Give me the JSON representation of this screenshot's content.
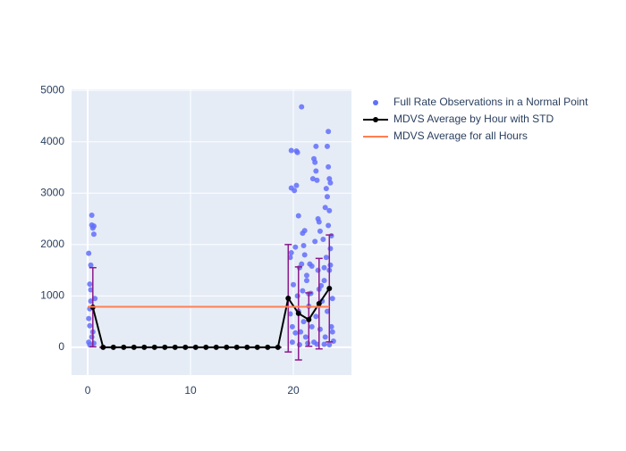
{
  "chart_data": {
    "type": "scatter",
    "xlim": [
      -1.57,
      25.65
    ],
    "ylim": [
      -540,
      5020
    ],
    "xticks": [
      0,
      10,
      20
    ],
    "yticks": [
      0,
      1000,
      2000,
      3000,
      4000,
      5000
    ],
    "grid": true,
    "legend": "outside-right",
    "series": [
      {
        "name": "Full Rate Observations in a Normal Point",
        "mode": "markers",
        "color": "#636efa",
        "x": [
          0.1,
          0.2,
          0.3,
          0.4,
          0.4,
          0.5,
          0.6,
          0.6,
          0.1,
          0.2,
          0.3,
          0.1,
          0.2,
          0.5,
          0.7,
          0.4,
          0.6,
          0.2,
          0.3,
          19.8,
          19.8,
          20.1,
          20.3,
          20.4,
          20.3,
          20.5,
          20.8,
          20.9,
          21.1,
          21.0,
          19.8,
          19.7,
          20.2,
          20.6,
          21.1,
          21.3,
          21.6,
          21.8,
          21.9,
          22.0,
          22.1,
          22.2,
          22.2,
          22.3,
          22.1,
          22.4,
          22.5,
          22.6,
          22.7,
          22.9,
          23.1,
          23.2,
          23.3,
          23.3,
          23.4,
          23.4,
          23.5,
          23.6,
          23.5,
          23.4,
          23.7,
          23.6,
          23.6,
          23.5,
          23.2,
          23.8,
          23.9,
          19.7,
          19.9,
          20.0,
          20.2,
          20.4,
          20.5,
          20.7,
          20.9,
          21.0,
          21.2,
          21.3,
          21.5,
          21.7,
          21.8,
          22.0,
          22.2,
          22.4,
          22.6,
          22.8,
          23.0,
          23.1,
          23.3,
          23.5,
          23.7,
          19.9,
          20.6,
          21.4,
          22.3,
          23.0,
          23.8,
          20.8,
          21.5,
          22.5,
          23.0
        ],
        "values": [
          1830,
          1230,
          1600,
          2570,
          2380,
          2320,
          2200,
          2360,
          560,
          420,
          900,
          100,
          50,
          300,
          950,
          200,
          80,
          750,
          1120,
          3830,
          3100,
          3050,
          3820,
          3790,
          3150,
          2560,
          4680,
          2220,
          2270,
          1980,
          1840,
          1750,
          1950,
          1550,
          1800,
          1400,
          1620,
          1580,
          3280,
          3670,
          3600,
          3910,
          3430,
          3250,
          2060,
          2500,
          2440,
          2260,
          1200,
          2100,
          2720,
          3090,
          2930,
          3910,
          4200,
          3510,
          3280,
          3200,
          2660,
          2370,
          2170,
          1920,
          1600,
          1500,
          1750,
          950,
          120,
          650,
          400,
          1220,
          280,
          1000,
          700,
          300,
          1100,
          500,
          200,
          1300,
          800,
          1050,
          400,
          100,
          600,
          1500,
          350,
          900,
          1300,
          200,
          700,
          50,
          400,
          100,
          50,
          80,
          60,
          60,
          300,
          1620,
          1040,
          1130,
          1550
        ]
      },
      {
        "name": "MDVS Average by Hour with STD",
        "mode": "lines+markers",
        "color": "#000000",
        "error_color": "#8b1a8b",
        "x": [
          0.5,
          1.5,
          2.5,
          3.5,
          4.5,
          5.5,
          6.5,
          7.5,
          8.5,
          9.5,
          10.5,
          11.5,
          12.5,
          13.5,
          14.5,
          15.5,
          16.5,
          17.5,
          18.5,
          19.5,
          20.5,
          21.5,
          22.5,
          23.5
        ],
        "values": [
          780,
          0,
          0,
          0,
          0,
          0,
          0,
          0,
          0,
          0,
          0,
          0,
          0,
          0,
          0,
          0,
          0,
          0,
          0,
          955,
          660,
          540,
          850,
          1146
        ],
        "error": [
          770,
          0,
          0,
          0,
          0,
          0,
          0,
          0,
          0,
          0,
          0,
          0,
          0,
          0,
          0,
          0,
          0,
          0,
          0,
          1045,
          905,
          520,
          880,
          1040
        ]
      },
      {
        "name": "MDVS Average for all Hours",
        "mode": "lines",
        "color": "#ff7f50",
        "x": [
          0,
          23.5
        ],
        "values": [
          790,
          790
        ]
      }
    ]
  }
}
